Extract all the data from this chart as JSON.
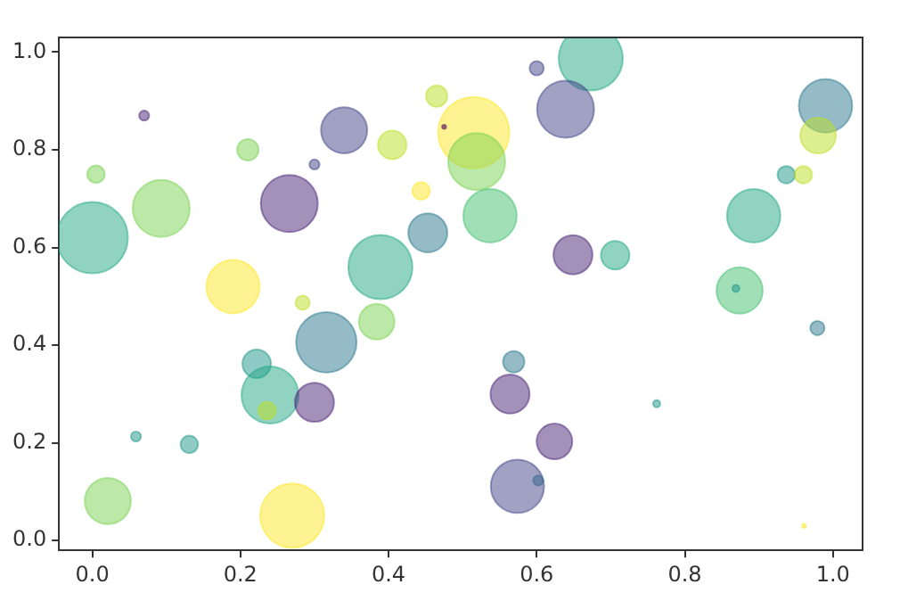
{
  "chart_data": {
    "type": "bubble",
    "xlim": [
      -0.045,
      1.04
    ],
    "ylim": [
      -0.02,
      1.03
    ],
    "xticks": [
      {
        "value": 0,
        "label": "0.0"
      },
      {
        "value": 0.2,
        "label": "0.2"
      },
      {
        "value": 0.4,
        "label": "0.4"
      },
      {
        "value": 0.6,
        "label": "0.6"
      },
      {
        "value": 0.8,
        "label": "0.8"
      },
      {
        "value": 1,
        "label": "1.0"
      }
    ],
    "yticks": [
      {
        "value": 0,
        "label": "0.0"
      },
      {
        "value": 0.2,
        "label": "0.2"
      },
      {
        "value": 0.4,
        "label": "0.4"
      },
      {
        "value": 0.6,
        "label": "0.6"
      },
      {
        "value": 0.8,
        "label": "0.8"
      },
      {
        "value": 1,
        "label": "1.0"
      }
    ],
    "grid": false,
    "legend": false,
    "x": [
      0.0,
      0.005,
      0.07,
      0.093,
      0.21,
      0.19,
      0.266,
      0.3,
      0.34,
      0.405,
      0.465,
      0.444,
      0.453,
      0.389,
      0.284,
      0.673,
      0.6,
      0.639,
      0.515,
      0.519,
      0.537,
      0.649,
      0.706,
      0.99,
      0.98,
      0.937,
      0.96,
      0.893,
      0.874,
      0.869,
      0.316,
      0.384,
      0.222,
      0.24,
      0.236,
      0.3,
      0.059,
      0.131,
      0.021,
      0.27,
      0.569,
      0.564,
      0.624,
      0.574,
      0.602,
      0.762,
      0.979,
      0.961,
      0.475
    ],
    "values": [
      0.62,
      0.75,
      0.87,
      0.68,
      0.8,
      0.52,
      0.69,
      0.77,
      0.84,
      0.81,
      0.91,
      0.716,
      0.63,
      0.56,
      0.487,
      0.987,
      0.967,
      0.883,
      0.835,
      0.776,
      0.665,
      0.585,
      0.584,
      0.89,
      0.829,
      0.749,
      0.749,
      0.665,
      0.512,
      0.516,
      0.406,
      0.448,
      0.362,
      0.298,
      0.266,
      0.283,
      0.213,
      0.197,
      0.081,
      0.051,
      0.366,
      0.3,
      0.203,
      0.111,
      0.123,
      0.28,
      0.435,
      0.03,
      0.847
    ],
    "sizes": [
      1,
      0.06,
      0.02,
      0.64,
      0.09,
      0.56,
      0.64,
      0.02,
      0.42,
      0.16,
      0.09,
      0.06,
      0.3,
      0.81,
      0.04,
      0.81,
      0.04,
      0.64,
      1,
      0.64,
      0.56,
      0.3,
      0.16,
      0.56,
      0.25,
      0.06,
      0.06,
      0.56,
      0.42,
      0.01,
      0.72,
      0.25,
      0.16,
      0.64,
      0.06,
      0.3,
      0.02,
      0.06,
      0.42,
      0.81,
      0.09,
      0.3,
      0.25,
      0.56,
      0.02,
      0.01,
      0.04,
      0.003,
      0.003
    ],
    "colors": [
      "#22a884",
      "#7ad151",
      "#482475",
      "#7ad151",
      "#7ad151",
      "#fde725",
      "#482475",
      "#414487",
      "#414487",
      "#bddf26",
      "#bddf26",
      "#fde725",
      "#2a788e",
      "#22a884",
      "#bddf26",
      "#22a884",
      "#414487",
      "#414487",
      "#fde725",
      "#7ad151",
      "#44bf70",
      "#482475",
      "#22a884",
      "#2a788e",
      "#bddf26",
      "#1f988b",
      "#bddf26",
      "#22a884",
      "#44bf70",
      "#1f988b",
      "#2a788e",
      "#7ad151",
      "#1f988b",
      "#22a884",
      "#bddf26",
      "#482475",
      "#1f988b",
      "#1f988b",
      "#7ad151",
      "#fde725",
      "#2a788e",
      "#482475",
      "#482475",
      "#414487",
      "#31688e",
      "#1f988b",
      "#2a788e",
      "#fde725",
      "#440154"
    ]
  }
}
